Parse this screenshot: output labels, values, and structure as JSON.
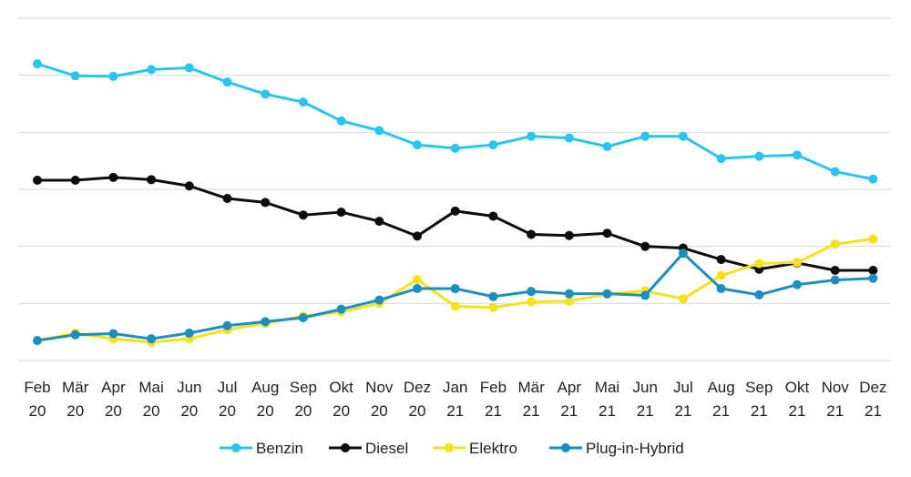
{
  "chart_data": {
    "type": "line",
    "title": "",
    "xlabel": "",
    "ylabel": "",
    "ylim": [
      0,
      6
    ],
    "grid": true,
    "y_axis_labels_visible": false,
    "legend_position": "bottom",
    "categories": [
      {
        "month": "Feb",
        "year": "20"
      },
      {
        "month": "Mär",
        "year": "20"
      },
      {
        "month": "Apr",
        "year": "20"
      },
      {
        "month": "Mai",
        "year": "20"
      },
      {
        "month": "Jun",
        "year": "20"
      },
      {
        "month": "Jul",
        "year": "20"
      },
      {
        "month": "Aug",
        "year": "20"
      },
      {
        "month": "Sep",
        "year": "20"
      },
      {
        "month": "Okt",
        "year": "20"
      },
      {
        "month": "Nov",
        "year": "20"
      },
      {
        "month": "Dez",
        "year": "20"
      },
      {
        "month": "Jan",
        "year": "21"
      },
      {
        "month": "Feb",
        "year": "21"
      },
      {
        "month": "Mär",
        "year": "21"
      },
      {
        "month": "Apr",
        "year": "21"
      },
      {
        "month": "Mai",
        "year": "21"
      },
      {
        "month": "Jun",
        "year": "21"
      },
      {
        "month": "Jul",
        "year": "21"
      },
      {
        "month": "Aug",
        "year": "21"
      },
      {
        "month": "Sep",
        "year": "21"
      },
      {
        "month": "Okt",
        "year": "21"
      },
      {
        "month": "Nov",
        "year": "21"
      },
      {
        "month": "Dez",
        "year": "21"
      }
    ],
    "series": [
      {
        "name": "Benzin",
        "color": "#29c5ee",
        "values": [
          5.2,
          4.99,
          4.98,
          5.1,
          5.13,
          4.88,
          4.67,
          4.53,
          4.2,
          4.03,
          3.78,
          3.72,
          3.78,
          3.93,
          3.9,
          3.75,
          3.93,
          3.93,
          3.54,
          3.58,
          3.6,
          3.31,
          3.18
        ]
      },
      {
        "name": "Diesel",
        "color": "#0d0d0d",
        "values": [
          3.16,
          3.16,
          3.21,
          3.17,
          3.06,
          2.84,
          2.77,
          2.55,
          2.6,
          2.44,
          2.18,
          2.62,
          2.53,
          2.21,
          2.19,
          2.23,
          2.0,
          1.97,
          1.77,
          1.6,
          1.71,
          1.58,
          1.58
        ]
      },
      {
        "name": "Elektro",
        "color": "#f5e21a",
        "values": [
          0.35,
          0.48,
          0.38,
          0.32,
          0.38,
          0.54,
          0.65,
          0.78,
          0.85,
          1.0,
          1.42,
          0.95,
          0.93,
          1.03,
          1.04,
          1.16,
          1.22,
          1.08,
          1.49,
          1.7,
          1.72,
          2.04,
          2.13
        ]
      },
      {
        "name": "Plug-in-Hybrid",
        "color": "#1a8fc0",
        "values": [
          0.35,
          0.45,
          0.47,
          0.38,
          0.48,
          0.61,
          0.68,
          0.75,
          0.9,
          1.06,
          1.26,
          1.26,
          1.12,
          1.21,
          1.17,
          1.17,
          1.14,
          1.88,
          1.26,
          1.15,
          1.33,
          1.41,
          1.44
        ]
      }
    ]
  }
}
